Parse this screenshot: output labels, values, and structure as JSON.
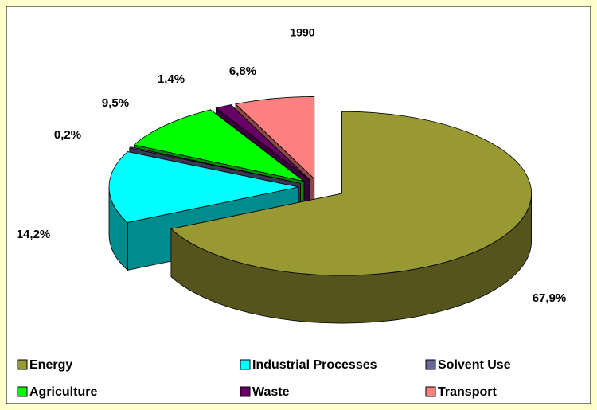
{
  "chart_data": {
    "type": "pie",
    "title": "1990",
    "categories": [
      "Energy",
      "Industrial Processes",
      "Solvent Use",
      "Agriculture",
      "Waste",
      "Transport"
    ],
    "values": [
      67.9,
      14.2,
      0.2,
      9.5,
      1.4,
      6.8
    ],
    "value_labels": [
      "67,9%",
      "14,2%",
      "0,2%",
      "9,5%",
      "1,4%",
      "6,8%"
    ],
    "colors": [
      "#999933",
      "#00ffff",
      "#666699",
      "#00ff00",
      "#660066",
      "#ff8080"
    ]
  }
}
